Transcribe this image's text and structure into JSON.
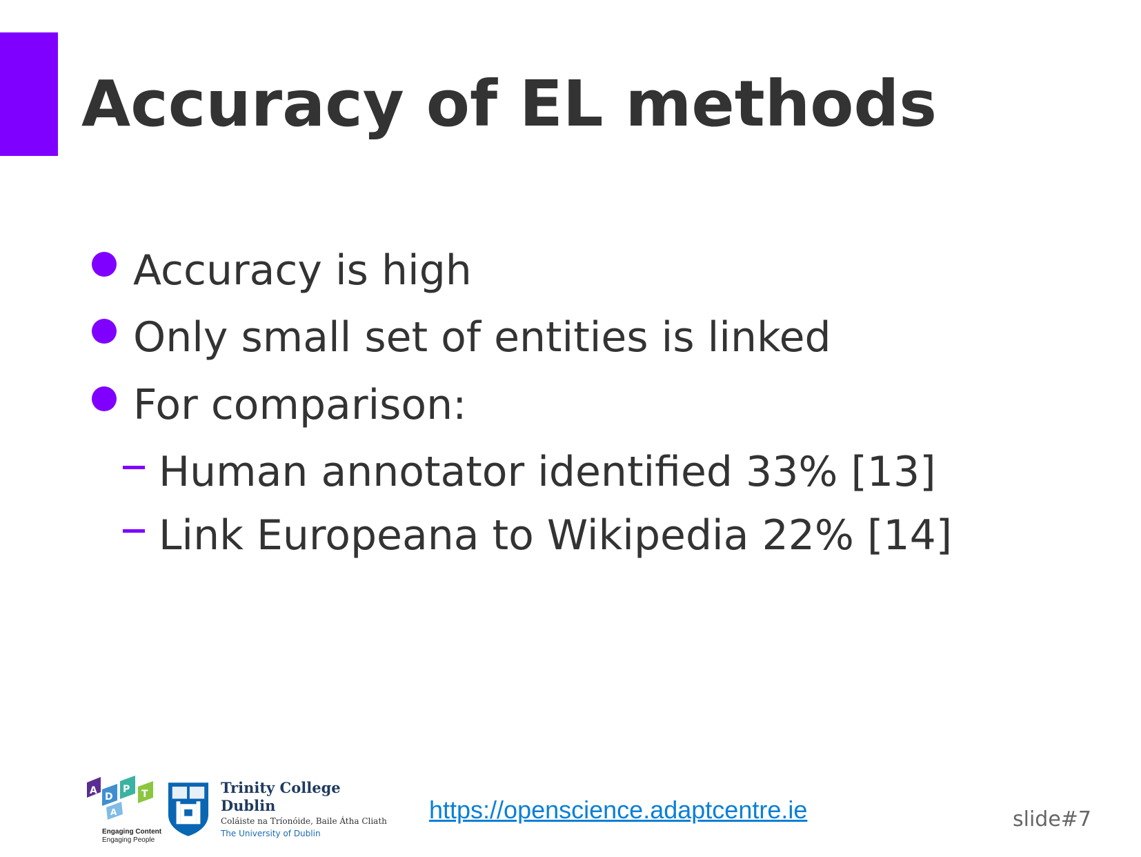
{
  "slide": {
    "title": "Accuracy of EL methods",
    "accent_color": "#8000ff",
    "bullets": [
      "Accuracy is high",
      "Only small set of entities is linked",
      "For comparison:"
    ],
    "sub_bullets": [
      "Human annotator identified 33% [13]",
      "Link Europeana to Wikipedia 22% [14]"
    ]
  },
  "footer": {
    "adapt_logo": {
      "letters": [
        "A",
        "D",
        "A",
        "P",
        "T"
      ],
      "tagline_1": "Engaging Content",
      "tagline_2": "Engaging People"
    },
    "tcd_logo": {
      "name": "Trinity College Dublin",
      "irish_name": "Coláiste na Tríonóide, Baile Átha Cliath",
      "subtitle": "The University of Dublin"
    },
    "url": "https://openscience.adaptcentre.ie",
    "slide_number": "slide#7"
  }
}
